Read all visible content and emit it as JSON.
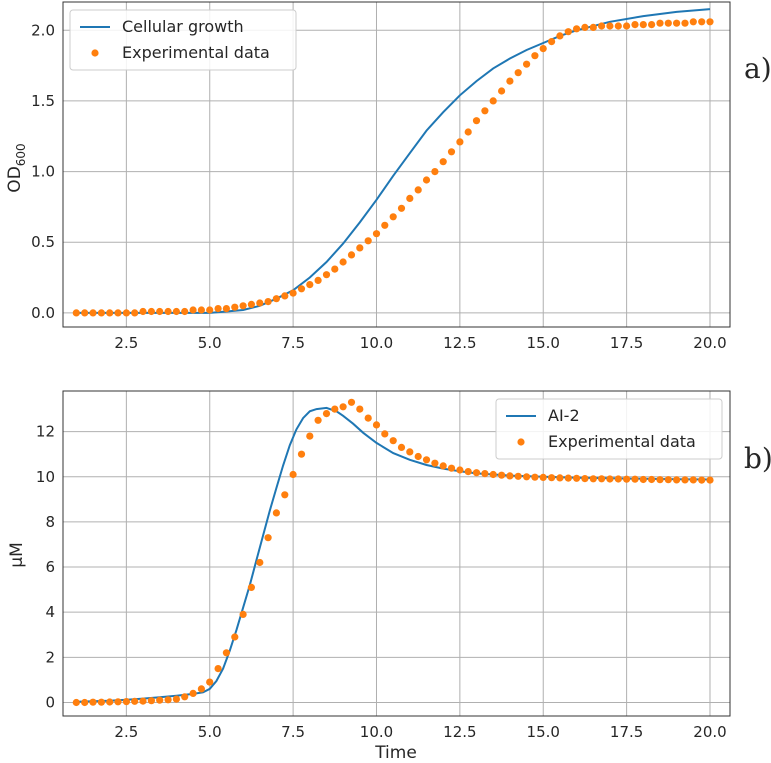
{
  "chart_data": [
    {
      "type": "line",
      "panel_label": "a)",
      "ylabel": "OD",
      "ylabel_subscript": "600",
      "xlabel": "",
      "xlim": [
        0.6,
        20.6
      ],
      "ylim": [
        -0.1,
        2.2
      ],
      "x_ticks": [
        2.5,
        5.0,
        7.5,
        10.0,
        12.5,
        15.0,
        17.5,
        20.0
      ],
      "y_ticks": [
        0.0,
        0.5,
        1.0,
        1.5,
        2.0
      ],
      "x_tick_labels": [
        "2.5",
        "5.0",
        "7.5",
        "10.0",
        "12.5",
        "15.0",
        "17.5",
        "20.0"
      ],
      "y_tick_labels": [
        "0.0",
        "0.5",
        "1.0",
        "1.5",
        "2.0"
      ],
      "grid": true,
      "legend_position": "upper-left",
      "colors": {
        "model": "#1f77b4",
        "data": "#ff7f0e"
      },
      "series": [
        {
          "name": "Cellular growth",
          "kind": "line",
          "x": [
            1.0,
            2.0,
            3.0,
            4.0,
            5.0,
            5.5,
            6.0,
            6.5,
            7.0,
            7.5,
            8.0,
            8.5,
            9.0,
            9.5,
            10.0,
            10.5,
            11.0,
            11.5,
            12.0,
            12.5,
            13.0,
            13.5,
            14.0,
            14.5,
            15.0,
            15.5,
            16.0,
            17.0,
            18.0,
            19.0,
            20.0
          ],
          "y": [
            0.0,
            0.0,
            0.0,
            0.0,
            0.0,
            0.01,
            0.02,
            0.05,
            0.1,
            0.16,
            0.25,
            0.36,
            0.49,
            0.64,
            0.8,
            0.97,
            1.13,
            1.29,
            1.42,
            1.54,
            1.64,
            1.73,
            1.8,
            1.86,
            1.91,
            1.96,
            2.0,
            2.06,
            2.1,
            2.13,
            2.15
          ]
        },
        {
          "name": "Experimental data",
          "kind": "scatter",
          "x": [
            1.0,
            1.25,
            1.5,
            1.75,
            2.0,
            2.25,
            2.5,
            2.75,
            3.0,
            3.25,
            3.5,
            3.75,
            4.0,
            4.25,
            4.5,
            4.75,
            5.0,
            5.25,
            5.5,
            5.75,
            6.0,
            6.25,
            6.5,
            6.75,
            7.0,
            7.25,
            7.5,
            7.75,
            8.0,
            8.25,
            8.5,
            8.75,
            9.0,
            9.25,
            9.5,
            9.75,
            10.0,
            10.25,
            10.5,
            10.75,
            11.0,
            11.25,
            11.5,
            11.75,
            12.0,
            12.25,
            12.5,
            12.75,
            13.0,
            13.25,
            13.5,
            13.75,
            14.0,
            14.25,
            14.5,
            14.75,
            15.0,
            15.25,
            15.5,
            15.75,
            16.0,
            16.25,
            16.5,
            16.75,
            17.0,
            17.25,
            17.5,
            17.75,
            18.0,
            18.25,
            18.5,
            18.75,
            19.0,
            19.25,
            19.5,
            19.75,
            20.0
          ],
          "y": [
            0.0,
            0.0,
            0.0,
            0.0,
            0.0,
            0.0,
            0.0,
            0.0,
            0.01,
            0.01,
            0.01,
            0.01,
            0.01,
            0.01,
            0.02,
            0.02,
            0.02,
            0.03,
            0.03,
            0.04,
            0.05,
            0.06,
            0.07,
            0.08,
            0.1,
            0.12,
            0.14,
            0.17,
            0.2,
            0.23,
            0.27,
            0.31,
            0.36,
            0.41,
            0.46,
            0.51,
            0.56,
            0.62,
            0.68,
            0.74,
            0.81,
            0.87,
            0.94,
            1.0,
            1.07,
            1.14,
            1.21,
            1.28,
            1.36,
            1.43,
            1.5,
            1.57,
            1.64,
            1.7,
            1.76,
            1.82,
            1.87,
            1.92,
            1.96,
            1.99,
            2.01,
            2.02,
            2.02,
            2.03,
            2.03,
            2.03,
            2.03,
            2.04,
            2.04,
            2.04,
            2.05,
            2.05,
            2.05,
            2.05,
            2.06,
            2.06,
            2.06
          ]
        }
      ]
    },
    {
      "type": "line",
      "panel_label": "b)",
      "ylabel": "μM",
      "xlabel": "Time",
      "xlim": [
        0.6,
        20.6
      ],
      "ylim": [
        -0.6,
        13.8
      ],
      "x_ticks": [
        2.5,
        5.0,
        7.5,
        10.0,
        12.5,
        15.0,
        17.5,
        20.0
      ],
      "y_ticks": [
        0,
        2,
        4,
        6,
        8,
        10,
        12
      ],
      "x_tick_labels": [
        "2.5",
        "5.0",
        "7.5",
        "10.0",
        "12.5",
        "15.0",
        "17.5",
        "20.0"
      ],
      "y_tick_labels": [
        "0",
        "2",
        "4",
        "6",
        "8",
        "10",
        "12"
      ],
      "grid": true,
      "legend_position": "upper-right",
      "colors": {
        "model": "#1f77b4",
        "data": "#ff7f0e"
      },
      "series": [
        {
          "name": "AI-2",
          "kind": "line",
          "x": [
            1.0,
            1.5,
            2.0,
            2.5,
            3.0,
            3.5,
            4.0,
            4.5,
            4.8,
            5.0,
            5.2,
            5.4,
            5.6,
            5.8,
            6.0,
            6.2,
            6.4,
            6.6,
            6.8,
            7.0,
            7.2,
            7.4,
            7.6,
            7.8,
            8.0,
            8.2,
            8.5,
            8.8,
            9.0,
            9.3,
            9.6,
            10.0,
            10.5,
            11.0,
            11.5,
            12.0,
            12.5,
            13.0,
            14.0,
            15.0,
            16.0,
            17.0,
            18.0,
            19.0,
            20.0
          ],
          "y": [
            0.03,
            0.05,
            0.08,
            0.12,
            0.17,
            0.23,
            0.3,
            0.38,
            0.45,
            0.6,
            0.95,
            1.5,
            2.3,
            3.2,
            4.2,
            5.2,
            6.3,
            7.4,
            8.5,
            9.5,
            10.5,
            11.4,
            12.1,
            12.6,
            12.9,
            13.0,
            13.05,
            12.9,
            12.7,
            12.35,
            11.95,
            11.5,
            11.05,
            10.75,
            10.52,
            10.36,
            10.24,
            10.15,
            10.05,
            10.0,
            9.96,
            9.93,
            9.91,
            9.89,
            9.88
          ]
        },
        {
          "name": "Experimental data",
          "kind": "scatter",
          "x": [
            1.0,
            1.25,
            1.5,
            1.75,
            2.0,
            2.25,
            2.5,
            2.75,
            3.0,
            3.25,
            3.5,
            3.75,
            4.0,
            4.25,
            4.5,
            4.75,
            5.0,
            5.25,
            5.5,
            5.75,
            6.0,
            6.25,
            6.5,
            6.75,
            7.0,
            7.25,
            7.5,
            7.75,
            8.0,
            8.25,
            8.5,
            8.75,
            9.0,
            9.25,
            9.5,
            9.75,
            10.0,
            10.25,
            10.5,
            10.75,
            11.0,
            11.25,
            11.5,
            11.75,
            12.0,
            12.25,
            12.5,
            12.75,
            13.0,
            13.25,
            13.5,
            13.75,
            14.0,
            14.25,
            14.5,
            14.75,
            15.0,
            15.25,
            15.5,
            15.75,
            16.0,
            16.25,
            16.5,
            16.75,
            17.0,
            17.25,
            17.5,
            17.75,
            18.0,
            18.25,
            18.5,
            18.75,
            19.0,
            19.25,
            19.5,
            19.75,
            20.0
          ],
          "y": [
            0.0,
            0.0,
            0.01,
            0.01,
            0.02,
            0.03,
            0.04,
            0.05,
            0.06,
            0.08,
            0.1,
            0.12,
            0.15,
            0.25,
            0.4,
            0.6,
            0.9,
            1.5,
            2.2,
            2.9,
            3.9,
            5.1,
            6.2,
            7.3,
            8.4,
            9.2,
            10.1,
            11.0,
            11.8,
            12.5,
            12.8,
            13.0,
            13.1,
            13.3,
            13.0,
            12.6,
            12.3,
            11.9,
            11.6,
            11.3,
            11.1,
            10.9,
            10.75,
            10.6,
            10.48,
            10.38,
            10.3,
            10.23,
            10.18,
            10.14,
            10.1,
            10.07,
            10.04,
            10.02,
            10.0,
            9.98,
            9.97,
            9.96,
            9.95,
            9.94,
            9.93,
            9.92,
            9.91,
            9.91,
            9.9,
            9.9,
            9.89,
            9.89,
            9.88,
            9.88,
            9.87,
            9.87,
            9.86,
            9.86,
            9.86,
            9.85,
            9.85
          ]
        }
      ]
    }
  ]
}
